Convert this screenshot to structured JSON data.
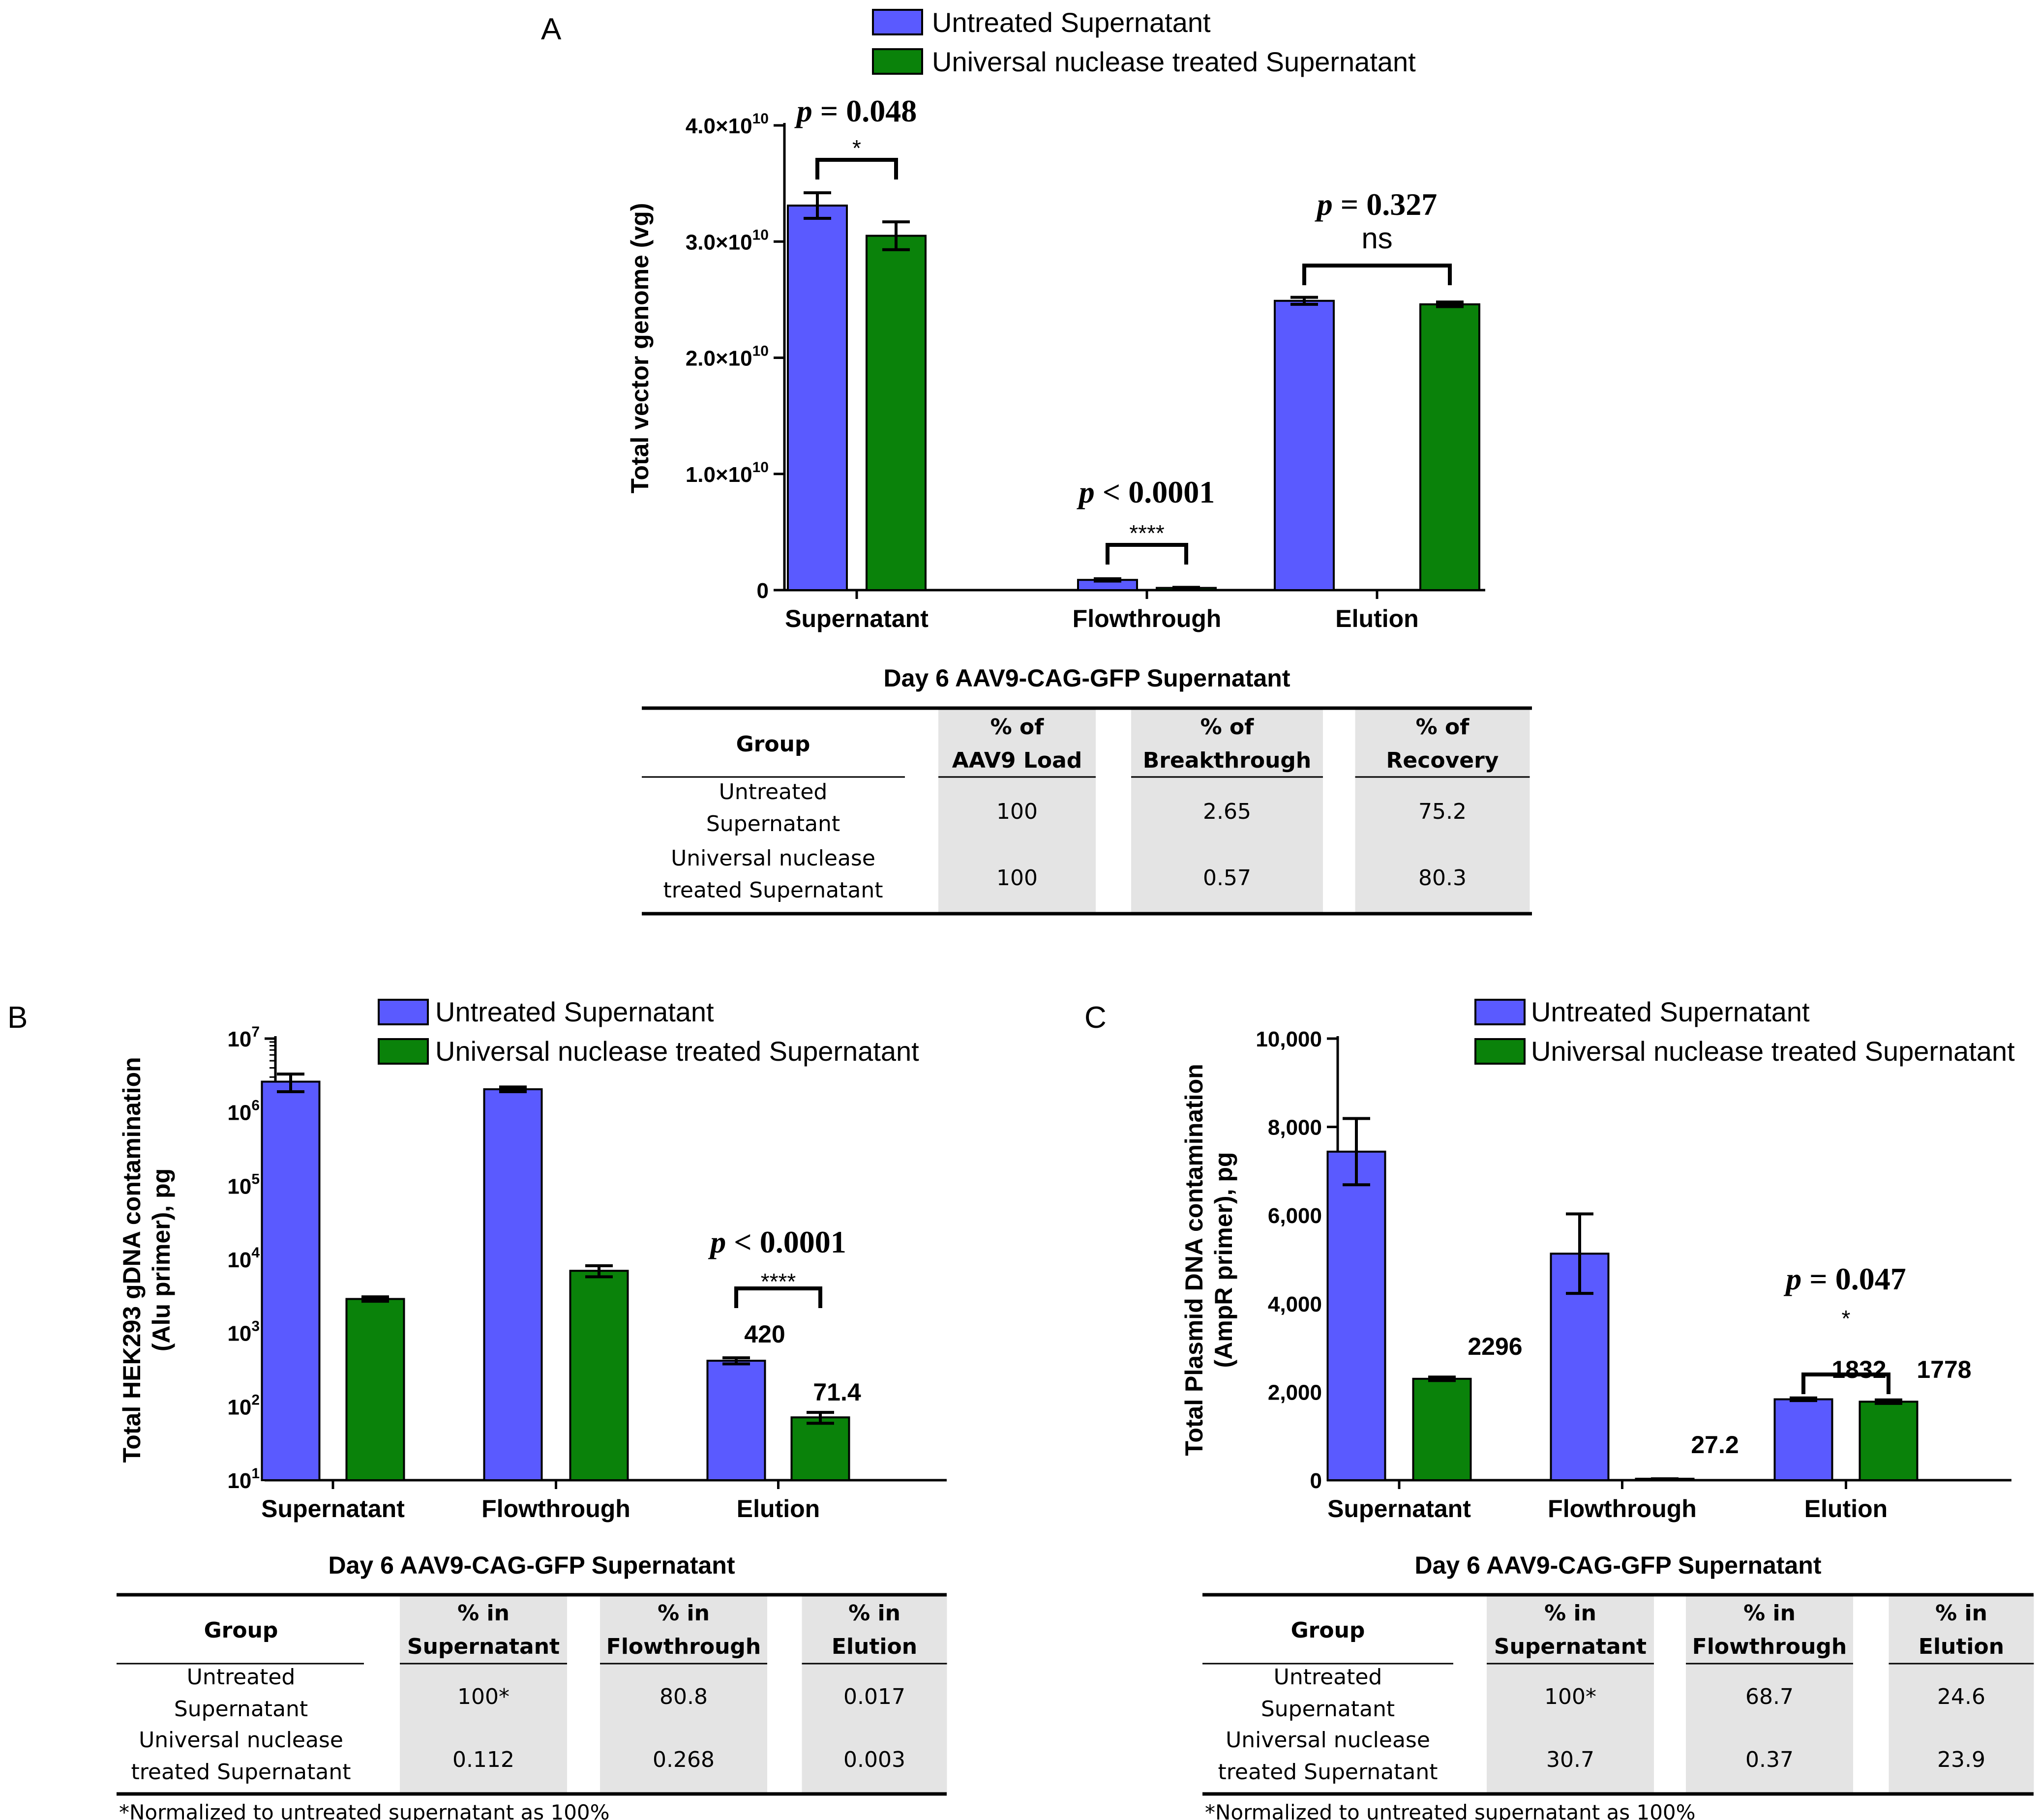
{
  "colors": {
    "untreated": "#5a5aff",
    "treated": "#0a820a",
    "table_shade": "#e4e4e4",
    "axis": "#000000"
  },
  "legend": {
    "untreated": "Untreated Supernatant",
    "treated": "Universal nuclease treated Supernatant"
  },
  "panels": {
    "A": {
      "letter": "A",
      "ylabel": "Total vector genome (vg)",
      "yticks": [
        {
          "value": 0,
          "text": "0"
        },
        {
          "value": 10000000000.0,
          "mant": "1.0×10",
          "exp": "10"
        },
        {
          "value": 20000000000.0,
          "mant": "2.0×10",
          "exp": "10"
        },
        {
          "value": 30000000000.0,
          "mant": "3.0×10",
          "exp": "10"
        },
        {
          "value": 40000000000.0,
          "mant": "4.0×10",
          "exp": "10"
        }
      ],
      "sig": [
        {
          "group": 0,
          "p": "= 0.048",
          "stars": "*"
        },
        {
          "group": 1,
          "p": "< 0.0001",
          "stars": "****"
        },
        {
          "group": 2,
          "p": "= 0.327",
          "stars": "ns"
        }
      ],
      "table": {
        "title": "Day 6 AAV9-CAG-GFP Supernatant",
        "group_header": "Group",
        "headers": [
          [
            "% of",
            "AAV9 Load"
          ],
          [
            "% of",
            "Breakthrough"
          ],
          [
            "% of",
            "Recovery"
          ]
        ],
        "rows": [
          {
            "group": [
              "Untreated",
              "Supernatant"
            ],
            "values": [
              "100",
              "2.65",
              "75.2"
            ]
          },
          {
            "group": [
              "Universal nuclease",
              "treated Supernatant"
            ],
            "values": [
              "100",
              "0.57",
              "80.3"
            ]
          }
        ]
      }
    },
    "B": {
      "letter": "B",
      "ylabel": [
        "Total HEK293 gDNA contamination",
        "(Alu primer), pg"
      ],
      "yticks": [
        {
          "value": 10,
          "mant": "10",
          "exp": "1"
        },
        {
          "value": 100,
          "mant": "10",
          "exp": "2"
        },
        {
          "value": 1000,
          "mant": "10",
          "exp": "3"
        },
        {
          "value": 10000,
          "mant": "10",
          "exp": "4"
        },
        {
          "value": 100000,
          "mant": "10",
          "exp": "5"
        },
        {
          "value": 1000000,
          "mant": "10",
          "exp": "6"
        },
        {
          "value": 10000000,
          "mant": "10",
          "exp": "7"
        }
      ],
      "labels": {
        "untreated_elution": "420",
        "treated_elution": "71.4"
      },
      "sig": [
        {
          "group": 2,
          "p": "< 0.0001",
          "stars": "****"
        }
      ],
      "table": {
        "title": "Day 6 AAV9-CAG-GFP Supernatant",
        "group_header": "Group",
        "headers": [
          [
            "% in",
            "Supernatant"
          ],
          [
            "% in",
            "Flowthrough"
          ],
          [
            "% in",
            "Elution"
          ]
        ],
        "rows": [
          {
            "group": [
              "Untreated",
              "Supernatant"
            ],
            "values": [
              "100*",
              "80.8",
              "0.017"
            ]
          },
          {
            "group": [
              "Universal nuclease",
              "treated Supernatant"
            ],
            "values": [
              "0.112",
              "0.268",
              "0.003"
            ]
          }
        ],
        "footnote": "*Normalized to untreated supernatant as 100%"
      }
    },
    "C": {
      "letter": "C",
      "ylabel": [
        "Total Plasmid DNA contamination",
        "(AmpR primer), pg"
      ],
      "yticks": [
        {
          "value": 0,
          "text": "0"
        },
        {
          "value": 2000,
          "text": "2,000"
        },
        {
          "value": 4000,
          "text": "4,000"
        },
        {
          "value": 6000,
          "text": "6,000"
        },
        {
          "value": 8000,
          "text": "8,000"
        },
        {
          "value": 10000,
          "text": "10,000"
        }
      ],
      "labels": {
        "treated_supernatant": "2296",
        "treated_flowthrough": "27.2",
        "untreated_elution": "1832",
        "treated_elution": "1778"
      },
      "sig": [
        {
          "group": 2,
          "p": "= 0.047",
          "stars": "*"
        }
      ],
      "table": {
        "title": "Day 6 AAV9-CAG-GFP Supernatant",
        "group_header": "Group",
        "headers": [
          [
            "% in",
            "Supernatant"
          ],
          [
            "% in",
            "Flowthrough"
          ],
          [
            "% in",
            "Elution"
          ]
        ],
        "rows": [
          {
            "group": [
              "Untreated",
              "Supernatant"
            ],
            "values": [
              "100*",
              "68.7",
              "24.6"
            ]
          },
          {
            "group": [
              "Universal nuclease",
              "treated Supernatant"
            ],
            "values": [
              "30.7",
              "0.37",
              "23.9"
            ]
          }
        ],
        "footnote": "*Normalized to untreated supernatant as 100%"
      }
    }
  },
  "chart_data": [
    {
      "panel": "A",
      "type": "bar",
      "categories": [
        "Supernatant",
        "Flowthrough",
        "Elution"
      ],
      "series": [
        {
          "name": "Untreated Supernatant",
          "values": [
            33100000000.0,
            880000000.0,
            24900000000.0
          ],
          "errors": [
            1100000000.0,
            100000000.0,
            300000000.0
          ]
        },
        {
          "name": "Universal nuclease treated Supernatant",
          "values": [
            30500000000.0,
            190000000.0,
            24600000000.0
          ],
          "errors": [
            1200000000.0,
            50000000.0,
            200000000.0
          ]
        }
      ],
      "ylabel": "Total vector genome (vg)",
      "yscale": "linear",
      "ylim": [
        0,
        40000000000.0
      ],
      "xlabel": ""
    },
    {
      "panel": "B",
      "type": "bar",
      "categories": [
        "Supernatant",
        "Flowthrough",
        "Elution"
      ],
      "series": [
        {
          "name": "Untreated Supernatant",
          "values": [
            2600000,
            2050000,
            420
          ],
          "errors": [
            700000,
            150000,
            40
          ]
        },
        {
          "name": "Universal nuclease treated Supernatant",
          "values": [
            2900,
            7000,
            71.4
          ],
          "errors": [
            200,
            1200,
            12
          ]
        }
      ],
      "ylabel": "Total HEK293 gDNA contamination (Alu primer), pg",
      "yscale": "log",
      "ylim": [
        10,
        10000000
      ],
      "xlabel": ""
    },
    {
      "panel": "C",
      "type": "bar",
      "categories": [
        "Supernatant",
        "Flowthrough",
        "Elution"
      ],
      "series": [
        {
          "name": "Untreated Supernatant",
          "values": [
            7440,
            5130,
            1832
          ],
          "errors": [
            750,
            900,
            30
          ]
        },
        {
          "name": "Universal nuclease treated Supernatant",
          "values": [
            2296,
            27.2,
            1778
          ],
          "errors": [
            40,
            5,
            40
          ]
        }
      ],
      "ylabel": "Total Plasmid DNA contamination (AmpR primer), pg",
      "yscale": "linear",
      "ylim": [
        0,
        10000
      ],
      "xlabel": ""
    }
  ]
}
